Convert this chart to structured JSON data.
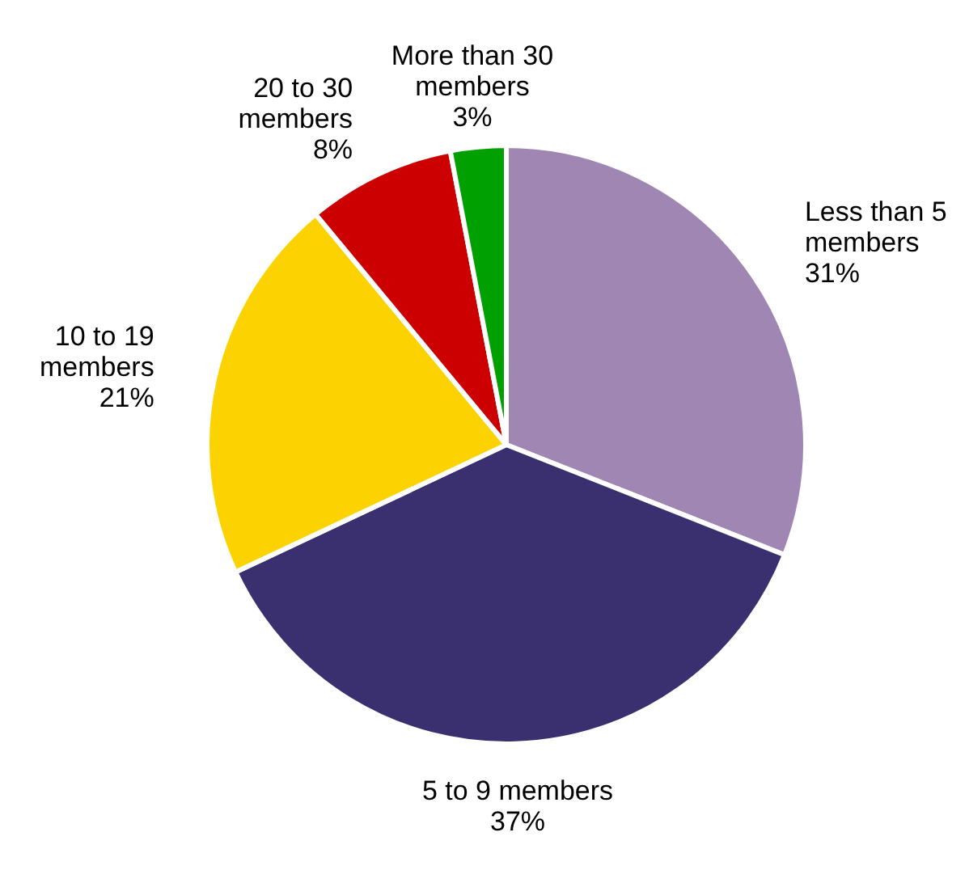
{
  "chart_data": {
    "type": "pie",
    "categories": [
      "Less than 5 members",
      "5 to 9 members",
      "10 to 19 members",
      "20 to 30 members",
      "More than 30 members"
    ],
    "values": [
      31,
      37,
      21,
      8,
      3
    ],
    "value_labels": [
      "31%",
      "37%",
      "21%",
      "8%",
      "3%"
    ],
    "colors": [
      "#9f86b3",
      "#3a2f6f",
      "#fcd200",
      "#cc0000",
      "#00a000"
    ],
    "legend": false
  }
}
